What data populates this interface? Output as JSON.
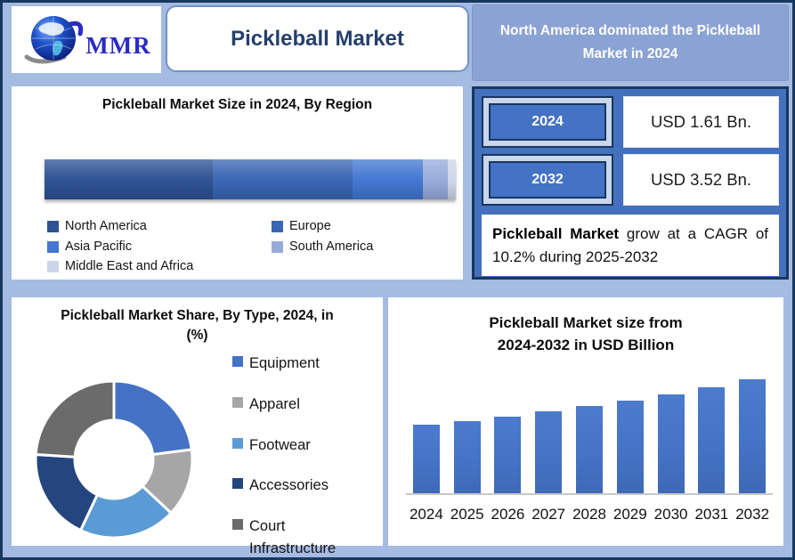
{
  "logo": {
    "text": "MMR"
  },
  "header": {
    "title": "Pickleball Market",
    "highlight": "North America dominated the Pickleball Market in 2024"
  },
  "region_panel": {
    "title": "Pickleball Market Size in 2024, By Region"
  },
  "stats_panel": {
    "rows": [
      {
        "year": "2024",
        "value": "USD 1.61 Bn."
      },
      {
        "year": "2032",
        "value": "USD 3.52 Bn."
      }
    ],
    "cagr_bold": "Pickleball Market",
    "cagr_rest": " grow at a CAGR of 10.2% during 2025-2032"
  },
  "donut_panel": {
    "title": "Pickleball Market Share, By Type, 2024, in (%)"
  },
  "bar_panel": {
    "title_line1": "Pickleball Market size from",
    "title_line2": "2024-2032 in USD Billion"
  },
  "colors": {
    "outer_border": "#17375E",
    "page_background": "#A6BBE2",
    "highlight_box": "#8BA3D4",
    "stats_panel": "#4470BD",
    "accent_blue": "#4472C4",
    "title_text": "#24406B"
  },
  "chart_data": [
    {
      "type": "bar",
      "subtype": "horizontal-stacked",
      "title": "Pickleball Market Size in 2024, By Region",
      "legend_position": "bottom",
      "series": [
        {
          "name": "North America",
          "share_pct": 41,
          "color": "#2E5294"
        },
        {
          "name": "Europe",
          "share_pct": 34,
          "color": "#3A66B3"
        },
        {
          "name": "Asia Pacific",
          "share_pct": 17,
          "color": "#4377D2"
        },
        {
          "name": "South America",
          "share_pct": 6,
          "color": "#97ABDB"
        },
        {
          "name": "Middle East and Africa",
          "share_pct": 2,
          "color": "#CDD6E9"
        }
      ]
    },
    {
      "type": "pie",
      "subtype": "donut",
      "title": "Pickleball Market Share, By Type, 2024, in (%)",
      "legend_position": "right",
      "slices": [
        {
          "label": "Equipment",
          "value": 23,
          "color": "#4472C4"
        },
        {
          "label": "Apparel",
          "value": 14,
          "color": "#A6A6A6"
        },
        {
          "label": "Footwear",
          "value": 20,
          "color": "#5B9BD5"
        },
        {
          "label": "Accessories",
          "value": 19,
          "color": "#24457D"
        },
        {
          "label": "Court Infrastructure",
          "value": 24,
          "color": "#6B6B6B"
        }
      ]
    },
    {
      "type": "bar",
      "title": "Pickleball Market size from 2024-2032 in USD Billion",
      "categories": [
        "2024",
        "2025",
        "2026",
        "2027",
        "2028",
        "2029",
        "2030",
        "2031",
        "2032"
      ],
      "values": [
        1.61,
        1.77,
        1.96,
        2.16,
        2.38,
        2.62,
        2.89,
        3.19,
        3.52
      ],
      "xlabel": "",
      "ylabel": "USD Billion",
      "grid": false,
      "bar_color": "#4472C4"
    }
  ]
}
